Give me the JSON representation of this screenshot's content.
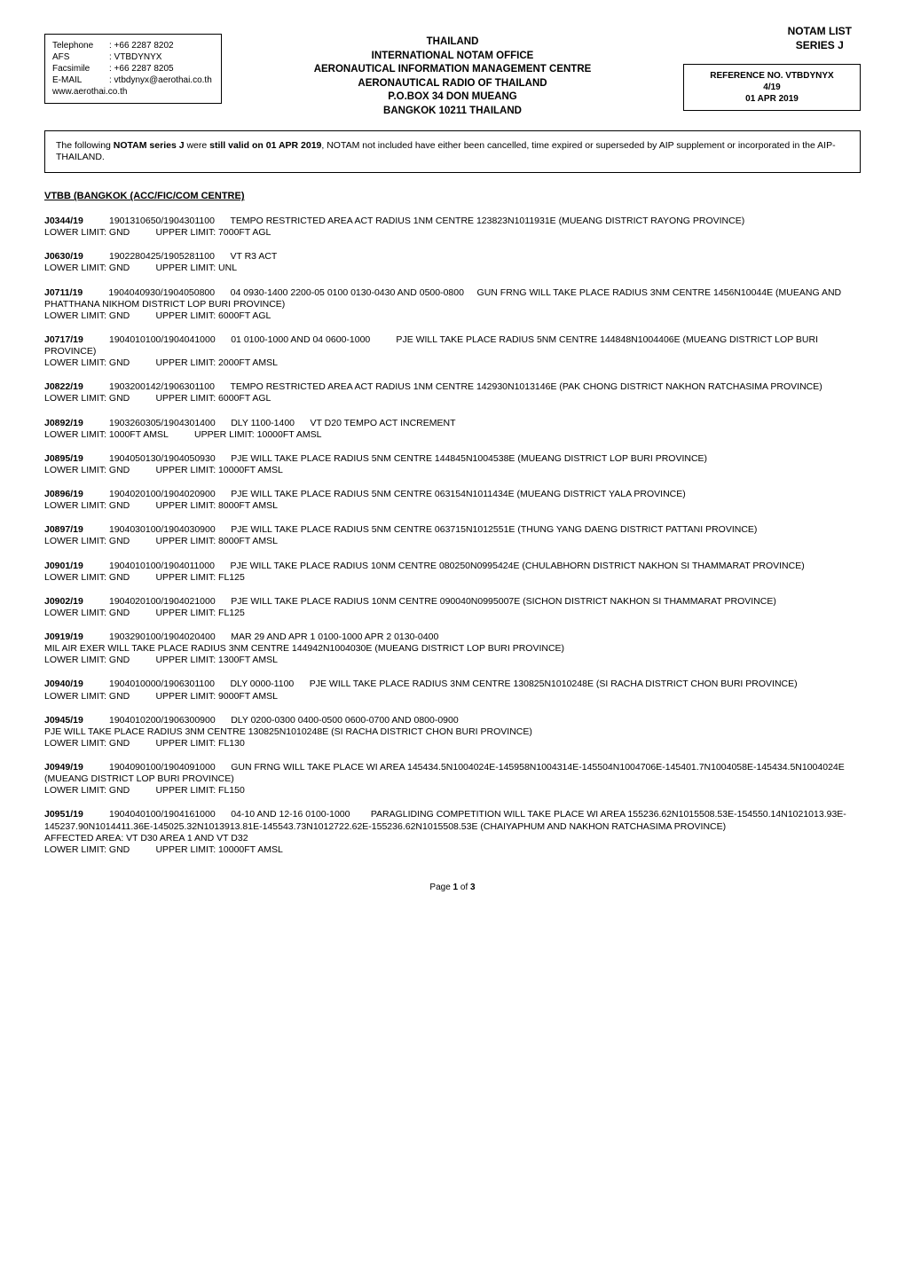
{
  "header": {
    "topRight": {
      "line1": "NOTAM LIST",
      "line2": "SERIES  J"
    },
    "left": {
      "telephone_label": "Telephone",
      "telephone": ": +66 2287 8202",
      "afs_label": "AFS",
      "afs": ": VTBDYNYX",
      "facsimile_label": "Facsimile",
      "facsimile": ": +66 2287 8205",
      "email_label": "E-MAIL",
      "email": ": vtbdynyx@aerothai.co.th",
      "web": "www.aerothai.co.th"
    },
    "center": {
      "l1": "THAILAND",
      "l2": "INTERNATIONAL NOTAM OFFICE",
      "l3": "AERONAUTICAL INFORMATION MANAGEMENT CENTRE",
      "l4": "AERONAUTICAL RADIO OF THAILAND",
      "l5": "P.O.BOX 34 DON MUEANG",
      "l6": "BANGKOK 10211 THAILAND"
    },
    "right": {
      "l1": "REFERENCE NO. VTBDYNYX",
      "l2": "4/19",
      "l3": "01 APR 2019"
    }
  },
  "intro": {
    "text1": "The following ",
    "bold1": "NOTAM series J",
    "text2": " were ",
    "bold2": "still valid on 01 APR 2019",
    "text3": ", NOTAM not included have either been cancelled, time expired  or superseded by AIP supplement or incorporated in the AIP-THAILAND."
  },
  "section_title": "VTBB (BANGKOK (ACC/FIC/COM CENTRE)",
  "notams": [
    {
      "id": "J0344/19",
      "dt": "1901310650/1904301100",
      "desc": "TEMPO RESTRICTED AREA ACT RADIUS 1NM CENTRE 123823N1011931E (MUEANG DISTRICT RAYONG PROVINCE)",
      "lower": "LOWER LIMIT: GND",
      "upper": "UPPER LIMIT: 7000FT AGL"
    },
    {
      "id": "J0630/19",
      "dt": "1902280425/1905281100",
      "desc": "VT R3 ACT",
      "lower": "LOWER LIMIT: GND",
      "upper": "UPPER LIMIT: UNL"
    },
    {
      "id": "J0711/19",
      "dt": "1904040930/1904050800",
      "desc": "04 0930-1400 2200-05 0100 0130-0430 AND 0500-0800     GUN FRNG WILL TAKE PLACE RADIUS 3NM CENTRE 1456N10044E (MUEANG AND PHATTHANA NIKHOM DISTRICT LOP BURI PROVINCE)",
      "lower": "LOWER LIMIT: GND",
      "upper": "UPPER LIMIT: 6000FT AGL"
    },
    {
      "id": "J0717/19",
      "dt": "1904010100/1904041000",
      "desc": "01 0100-1000 AND 04 0600-1000          PJE WILL TAKE PLACE RADIUS 5NM CENTRE 144848N1004406E (MUEANG DISTRICT LOP BURI PROVINCE)",
      "lower": "LOWER LIMIT: GND",
      "upper": "UPPER LIMIT: 2000FT AMSL"
    },
    {
      "id": "J0822/19",
      "dt": "1903200142/1906301100",
      "desc": "TEMPO RESTRICTED AREA ACT RADIUS 1NM CENTRE 142930N1013146E (PAK CHONG DISTRICT NAKHON RATCHASIMA PROVINCE)",
      "lower": "LOWER LIMIT: GND",
      "upper": "UPPER LIMIT: 6000FT AGL"
    },
    {
      "id": "J0892/19",
      "dt": "1903260305/1904301400",
      "desc": "DLY 1100-1400      VT D20 TEMPO ACT INCREMENT",
      "lower": "LOWER LIMIT: 1000FT AMSL",
      "upper": "UPPER LIMIT: 10000FT AMSL"
    },
    {
      "id": "J0895/19",
      "dt": "1904050130/1904050930",
      "desc": "PJE WILL TAKE PLACE RADIUS 5NM CENTRE 144845N1004538E (MUEANG DISTRICT LOP BURI PROVINCE)",
      "lower": "LOWER LIMIT: GND",
      "upper": "UPPER LIMIT: 10000FT AMSL"
    },
    {
      "id": "J0896/19",
      "dt": "1904020100/1904020900",
      "desc": "PJE WILL TAKE PLACE RADIUS 5NM CENTRE 063154N1011434E (MUEANG DISTRICT YALA PROVINCE)",
      "lower": "LOWER LIMIT: GND",
      "upper": "UPPER LIMIT: 8000FT AMSL"
    },
    {
      "id": "J0897/19",
      "dt": "1904030100/1904030900",
      "desc": "PJE WILL TAKE PLACE RADIUS 5NM CENTRE 063715N1012551E (THUNG YANG DAENG DISTRICT PATTANI PROVINCE)",
      "lower": "LOWER LIMIT: GND",
      "upper": "UPPER LIMIT: 8000FT AMSL"
    },
    {
      "id": "J0901/19",
      "dt": "1904010100/1904011000",
      "desc": "PJE WILL TAKE PLACE RADIUS 10NM CENTRE 080250N0995424E (CHULABHORN DISTRICT NAKHON SI THAMMARAT PROVINCE)",
      "lower": "LOWER LIMIT: GND",
      "upper": "UPPER LIMIT: FL125"
    },
    {
      "id": "J0902/19",
      "dt": "1904020100/1904021000",
      "desc": "PJE WILL TAKE PLACE RADIUS 10NM CENTRE 090040N0995007E (SICHON DISTRICT NAKHON SI THAMMARAT PROVINCE)",
      "lower": "LOWER LIMIT: GND",
      "upper": "UPPER LIMIT: FL125"
    },
    {
      "id": "J0919/19",
      "dt": "1903290100/1904020400",
      "desc": "MAR 29 AND APR 1 0100-1000 APR 2 0130-0400\nMIL AIR EXER WILL TAKE PLACE RADIUS 3NM CENTRE 144942N1004030E (MUEANG DISTRICT LOP BURI PROVINCE)",
      "lower": "LOWER LIMIT: GND",
      "upper": "UPPER LIMIT: 1300FT AMSL"
    },
    {
      "id": "J0940/19",
      "dt": "1904010000/1906301100",
      "desc": "DLY 0000-1100      PJE WILL TAKE PLACE RADIUS 3NM CENTRE 130825N1010248E (SI RACHA DISTRICT CHON BURI PROVINCE)",
      "lower": "LOWER LIMIT: GND",
      "upper": "UPPER LIMIT: 9000FT AMSL"
    },
    {
      "id": "J0945/19",
      "dt": "1904010200/1906300900",
      "desc": "DLY 0200-0300 0400-0500 0600-0700 AND 0800-0900\nPJE WILL TAKE PLACE RADIUS 3NM CENTRE 130825N1010248E (SI RACHA DISTRICT CHON BURI PROVINCE)",
      "lower": "LOWER LIMIT: GND",
      "upper": "UPPER LIMIT: FL130"
    },
    {
      "id": "J0949/19",
      "dt": "1904090100/1904091000",
      "desc": "GUN FRNG WILL TAKE PLACE WI AREA 145434.5N1004024E-145958N1004314E-145504N1004706E-145401.7N1004058E-145434.5N1004024E (MUEANG DISTRICT LOP BURI PROVINCE)",
      "lower": "LOWER LIMIT: GND",
      "upper": "UPPER LIMIT: FL150"
    },
    {
      "id": "J0951/19",
      "dt": "1904040100/1904161000",
      "desc": "04-10 AND 12-16 0100-1000        PARAGLIDING COMPETITION WILL TAKE PLACE WI AREA 155236.62N1015508.53E-154550.14N1021013.93E-145237.90N1014411.36E-145025.32N1013913.81E-145543.73N1012722.62E-155236.62N1015508.53E (CHAIYAPHUM AND NAKHON RATCHASIMA PROVINCE)\nAFFECTED AREA: VT D30 AREA 1 AND VT D32",
      "lower": "LOWER LIMIT: GND",
      "upper": "UPPER LIMIT: 10000FT AMSL"
    }
  ],
  "page_label_prefix": "Page ",
  "page_current": "1",
  "page_of": " of ",
  "page_total": "3"
}
